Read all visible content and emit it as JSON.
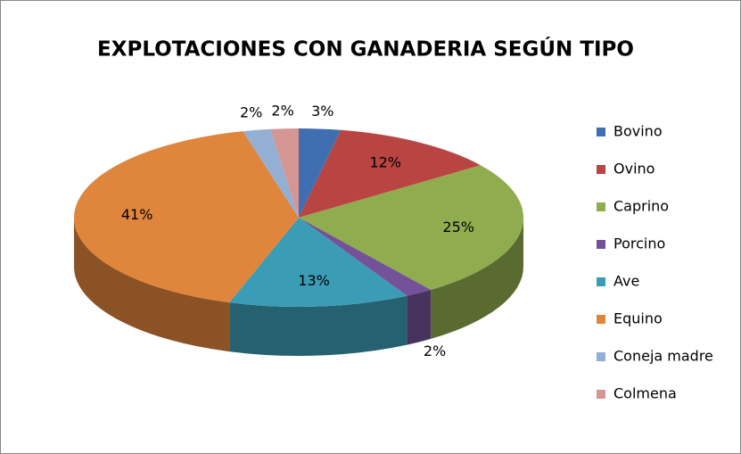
{
  "chart_data": {
    "type": "pie",
    "title": "EXPLOTACIONES CON GANADERIA SEGÚN TIPO",
    "categories": [
      "Bovino",
      "Ovino",
      "Caprino",
      "Porcino",
      "Ave",
      "Equino",
      "Coneja madre",
      "Colmena"
    ],
    "values": [
      3,
      12,
      25,
      2,
      13,
      41,
      2,
      2
    ],
    "value_labels": [
      "3%",
      "12%",
      "25%",
      "2%",
      "13%",
      "41%",
      "2%",
      "2%"
    ],
    "colors": [
      "#3f6fb0",
      "#b84542",
      "#8fad4f",
      "#74529a",
      "#3b9cb6",
      "#e0853c",
      "#93afd4",
      "#d59593"
    ],
    "legend": "right"
  }
}
